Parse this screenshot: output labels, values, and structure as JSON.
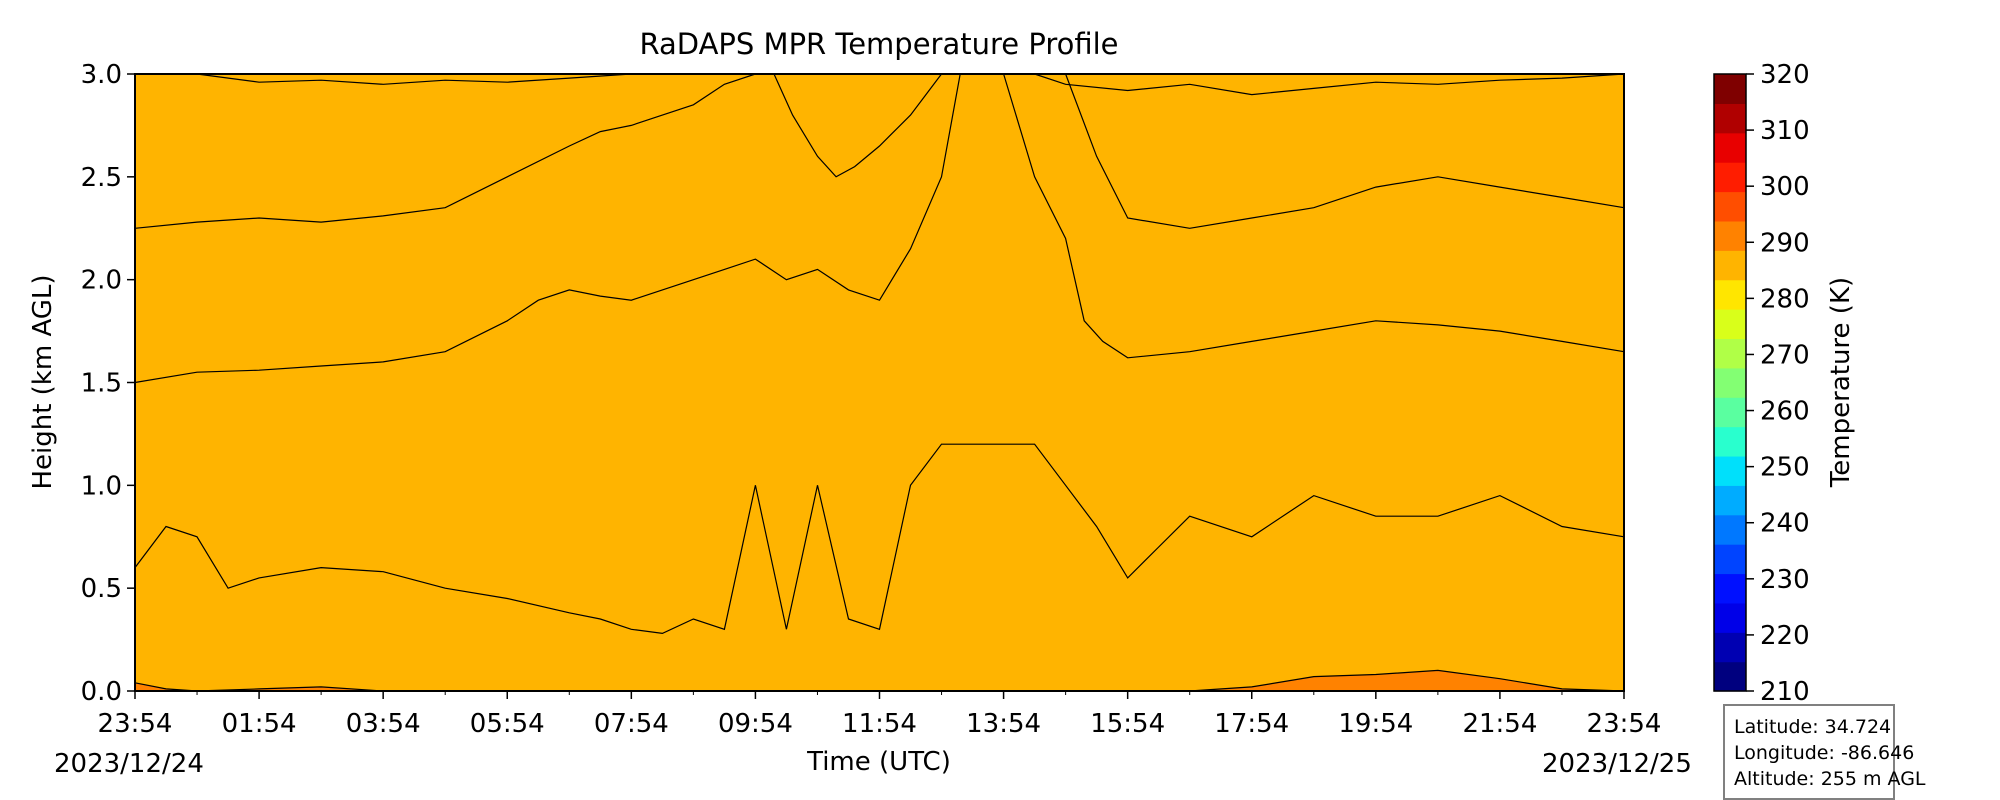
{
  "chart_data": {
    "type": "heatmap",
    "title": "RaDAPS MPR Temperature Profile",
    "xlabel": "Time (UTC)",
    "ylabel": "Height (km AGL)",
    "x_ticks": [
      "23:54",
      "01:54",
      "03:54",
      "05:54",
      "07:54",
      "09:54",
      "11:54",
      "13:54",
      "15:54",
      "17:54",
      "19:54",
      "21:54",
      "23:54"
    ],
    "x_range_hours": [
      0,
      24
    ],
    "start_date": "2023/12/24",
    "end_date": "2023/12/25",
    "y_ticks": [
      "0.0",
      "0.5",
      "1.0",
      "1.5",
      "2.0",
      "2.5",
      "3.0"
    ],
    "ylim": [
      0,
      3.0
    ],
    "colorbar": {
      "label": "Temperature (K)",
      "range": [
        210,
        320
      ],
      "ticks": [
        "210",
        "220",
        "230",
        "240",
        "250",
        "260",
        "270",
        "280",
        "290",
        "300",
        "310",
        "320"
      ],
      "step": 5,
      "colors": [
        "#00007f",
        "#0000b2",
        "#0000e8",
        "#0010ff",
        "#0044ff",
        "#0078ff",
        "#00acff",
        "#00e0fb",
        "#29ffce",
        "#5affa0",
        "#83ff73",
        "#b0ff47",
        "#d9ff1a",
        "#ffe600",
        "#ffb400",
        "#ff8200",
        "#ff4e00",
        "#ff1d00",
        "#e80000",
        "#b00000",
        "#7f0000"
      ]
    },
    "contour_levels_K": [
      265,
      270,
      275,
      280,
      285
    ],
    "contours": [
      {
        "level_K": 265,
        "fill": "#83ff73",
        "t": [
          0,
          1,
          2,
          3,
          4,
          5,
          6,
          7,
          8,
          9,
          10,
          10.5,
          11,
          11.5,
          12,
          12.5,
          13,
          13.5,
          14,
          14.5,
          15,
          16,
          17,
          18,
          19,
          20,
          21,
          22,
          23,
          24
        ],
        "h": [
          3.0,
          3.0,
          2.96,
          2.97,
          2.95,
          2.97,
          2.96,
          2.98,
          3.0,
          3.0,
          3.0,
          3.0,
          3.0,
          3.0,
          3.0,
          3.0,
          3.0,
          3.0,
          3.0,
          3.0,
          2.95,
          2.92,
          2.95,
          2.9,
          2.93,
          2.96,
          2.95,
          2.97,
          2.98,
          3.0
        ]
      },
      {
        "level_K": 270,
        "fill": "#b0ff47",
        "t": [
          0,
          1,
          2,
          3,
          4,
          5,
          6,
          7,
          7.5,
          8,
          8.5,
          9,
          9.5,
          10,
          10.3,
          10.6,
          11,
          11.3,
          11.6,
          12,
          12.5,
          13,
          13.5,
          14,
          14.5,
          15,
          15.5,
          16,
          17,
          18,
          19,
          20,
          21,
          22,
          23,
          24
        ],
        "h": [
          2.25,
          2.28,
          2.3,
          2.28,
          2.31,
          2.35,
          2.5,
          2.65,
          2.72,
          2.75,
          2.8,
          2.85,
          2.95,
          3.0,
          3.0,
          2.8,
          2.6,
          2.5,
          2.55,
          2.65,
          2.8,
          3.0,
          3.0,
          3.0,
          3.0,
          3.0,
          2.6,
          2.3,
          2.25,
          2.3,
          2.35,
          2.45,
          2.5,
          2.45,
          2.4,
          2.35
        ]
      },
      {
        "level_K": 275,
        "fill": "#d9ff1a",
        "t": [
          0,
          1,
          2,
          3,
          4,
          5,
          6,
          6.5,
          7,
          7.5,
          8,
          8.5,
          9,
          9.5,
          10,
          10.5,
          11,
          11.5,
          12,
          12.5,
          13,
          13.3,
          13.6,
          14,
          14.5,
          15,
          15.3,
          15.6,
          16,
          17,
          18,
          19,
          20,
          21,
          22,
          23,
          24
        ],
        "h": [
          1.5,
          1.55,
          1.56,
          1.58,
          1.6,
          1.65,
          1.8,
          1.9,
          1.95,
          1.92,
          1.9,
          1.95,
          2.0,
          2.05,
          2.1,
          2.0,
          2.05,
          1.95,
          1.9,
          2.15,
          2.5,
          3.0,
          3.0,
          3.0,
          2.5,
          2.2,
          1.8,
          1.7,
          1.62,
          1.65,
          1.7,
          1.75,
          1.8,
          1.78,
          1.75,
          1.7,
          1.65
        ]
      },
      {
        "level_K": 280,
        "fill": "#ffe600",
        "t": [
          0,
          0.5,
          1,
          1.5,
          2,
          3,
          4,
          5,
          6,
          7,
          7.5,
          8,
          8.5,
          9,
          9.5,
          10,
          10.5,
          11,
          11.5,
          12,
          12.5,
          13,
          13.5,
          14,
          14.5,
          15,
          15.5,
          16,
          16.5,
          17,
          18,
          19,
          20,
          21,
          22,
          23,
          24
        ],
        "h": [
          0.6,
          0.8,
          0.75,
          0.5,
          0.55,
          0.6,
          0.58,
          0.5,
          0.45,
          0.38,
          0.35,
          0.3,
          0.28,
          0.35,
          0.3,
          1.0,
          0.3,
          1.0,
          0.35,
          0.3,
          1.0,
          1.2,
          1.2,
          1.2,
          1.2,
          1.0,
          0.8,
          0.55,
          0.7,
          0.85,
          0.75,
          0.95,
          0.85,
          0.85,
          0.95,
          0.8,
          0.75
        ]
      },
      {
        "level_K": 285,
        "fill": "#ffb400",
        "t": [
          0,
          0.5,
          1,
          2,
          3,
          4,
          5,
          6,
          7,
          8,
          9,
          10,
          11,
          12,
          13,
          14,
          15,
          16,
          17,
          18,
          19,
          20,
          21,
          22,
          23,
          24
        ],
        "h": [
          0.04,
          0.01,
          0.0,
          0.01,
          0.02,
          0.0,
          0.0,
          0.0,
          0.0,
          0.0,
          0.0,
          0.0,
          0.0,
          0.0,
          0.0,
          0.0,
          0.0,
          0.0,
          0.0,
          0.02,
          0.07,
          0.08,
          0.1,
          0.06,
          0.01,
          0.0
        ]
      }
    ],
    "base_fill": "#ff8200"
  },
  "info_box": {
    "latitude": "Latitude: 34.724",
    "longitude": "Longitude: -86.646",
    "altitude": "Altitude: 255 m AGL"
  }
}
